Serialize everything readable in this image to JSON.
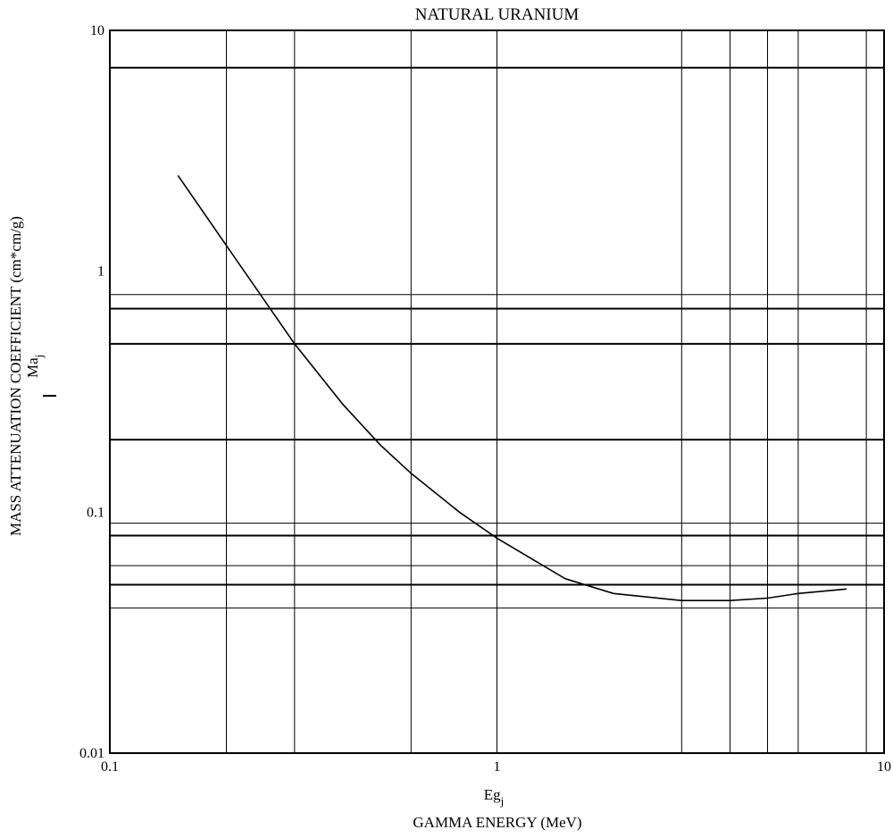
{
  "chart_data": {
    "type": "line",
    "title": "NATURAL URANIUM",
    "xlabel_symbol": "Eg",
    "xlabel_symbol_sub": "j",
    "xlabel": "GAMMA ENERGY (MeV)",
    "ylabel_symbol": "Ma",
    "ylabel_symbol_sub": "j",
    "ylabel": "MASS ATTENUATION COEFFICIENT (cm*cm/g)",
    "xscale": "log",
    "yscale": "log",
    "xlim": [
      0.1,
      10
    ],
    "ylim": [
      0.01,
      10
    ],
    "x_ticks": [
      {
        "value": 0.1,
        "label": "0.1"
      },
      {
        "value": 1,
        "label": "1"
      },
      {
        "value": 10,
        "label": "10"
      }
    ],
    "y_ticks": [
      {
        "value": 0.01,
        "label": "0.01"
      },
      {
        "value": 0.1,
        "label": "0.1"
      },
      {
        "value": 1,
        "label": "1"
      },
      {
        "value": 10,
        "label": "10"
      }
    ],
    "x_gridlines": [
      0.2,
      0.3,
      0.6,
      1,
      3,
      4,
      5,
      6,
      9
    ],
    "y_gridlines_thick": [
      0.05,
      0.08,
      0.2,
      0.5,
      0.7,
      7
    ],
    "y_gridlines_thin": [
      0.04,
      0.06,
      0.09,
      0.8
    ],
    "grid": true,
    "series": [
      {
        "x": [
          0.15,
          0.2,
          0.3,
          0.4,
          0.5,
          0.6,
          0.8,
          1.0,
          1.5,
          2.0,
          3.0,
          4.0,
          5.0,
          6.0,
          8.0
        ],
        "y": [
          2.5,
          1.28,
          0.5,
          0.28,
          0.19,
          0.145,
          0.1,
          0.078,
          0.053,
          0.046,
          0.043,
          0.043,
          0.044,
          0.046,
          0.048
        ]
      }
    ]
  }
}
